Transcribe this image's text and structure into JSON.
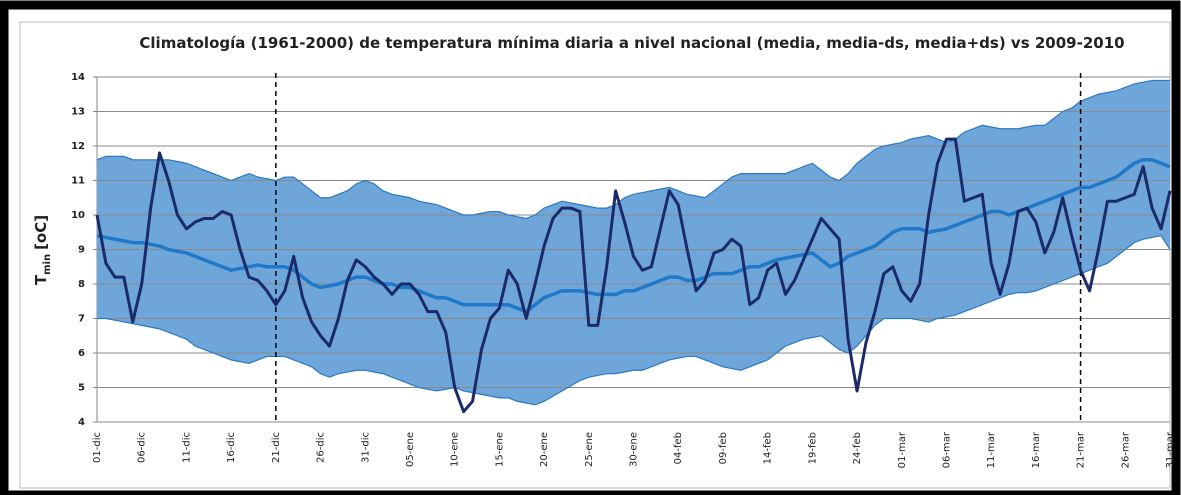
{
  "chart_data": {
    "type": "line",
    "title": "Climatología (1961-2000) de temperatura mínima diaria a nivel nacional (media, media-ds, media+ds) vs 2009-2010",
    "ylabel": {
      "main": "T",
      "sub": "min",
      "unit": "[oC]"
    },
    "categories": [
      "01-dic",
      null,
      null,
      null,
      null,
      "06-dic",
      null,
      null,
      null,
      null,
      "11-dic",
      null,
      null,
      null,
      null,
      "16-dic",
      null,
      null,
      null,
      null,
      "21-dic",
      null,
      null,
      null,
      null,
      "26-dic",
      null,
      null,
      null,
      null,
      "31-dic",
      null,
      null,
      null,
      null,
      "05-ene",
      null,
      null,
      null,
      null,
      "10-ene",
      null,
      null,
      null,
      null,
      "15-ene",
      null,
      null,
      null,
      null,
      "20-ene",
      null,
      null,
      null,
      null,
      "25-ene",
      null,
      null,
      null,
      null,
      "30-ene",
      null,
      null,
      null,
      null,
      "04-feb",
      null,
      null,
      null,
      null,
      "09-feb",
      null,
      null,
      null,
      null,
      "14-feb",
      null,
      null,
      null,
      null,
      "19-feb",
      null,
      null,
      null,
      null,
      "24-feb",
      null,
      null,
      null,
      null,
      "01-mar",
      null,
      null,
      null,
      null,
      "06-mar",
      null,
      null,
      null,
      null,
      "11-mar",
      null,
      null,
      null,
      null,
      "16-mar",
      null,
      null,
      null,
      null,
      "21-mar",
      null,
      null,
      null,
      null,
      "26-mar",
      null,
      null,
      null,
      null,
      "31-mar"
    ],
    "band": {
      "color": "#6ea6da",
      "edge_color": "#2b79c2",
      "upper": [
        11.6,
        11.7,
        11.7,
        11.7,
        11.6,
        11.6,
        11.6,
        11.6,
        11.6,
        11.55,
        11.5,
        11.4,
        11.3,
        11.2,
        11.1,
        11.0,
        11.1,
        11.2,
        11.1,
        11.05,
        11.0,
        11.1,
        11.1,
        10.9,
        10.7,
        10.5,
        10.5,
        10.6,
        10.7,
        10.9,
        11.0,
        10.9,
        10.7,
        10.6,
        10.55,
        10.5,
        10.4,
        10.35,
        10.3,
        10.2,
        10.1,
        10.0,
        10.0,
        10.05,
        10.1,
        10.1,
        10.0,
        9.95,
        9.9,
        10.0,
        10.2,
        10.3,
        10.4,
        10.35,
        10.3,
        10.25,
        10.2,
        10.2,
        10.3,
        10.5,
        10.6,
        10.65,
        10.7,
        10.75,
        10.8,
        10.7,
        10.6,
        10.55,
        10.5,
        10.7,
        10.9,
        11.1,
        11.2,
        11.2,
        11.2,
        11.2,
        11.2,
        11.2,
        11.3,
        11.4,
        11.5,
        11.3,
        11.1,
        11.0,
        11.2,
        11.5,
        11.7,
        11.9,
        12.0,
        12.05,
        12.1,
        12.2,
        12.25,
        12.3,
        12.2,
        12.1,
        12.2,
        12.4,
        12.5,
        12.6,
        12.55,
        12.5,
        12.5,
        12.5,
        12.55,
        12.6,
        12.6,
        12.8,
        13.0,
        13.1,
        13.3,
        13.4,
        13.5,
        13.55,
        13.6,
        13.7,
        13.8,
        13.85,
        13.9,
        13.9,
        13.9
      ],
      "lower": [
        7.0,
        7.0,
        6.95,
        6.9,
        6.85,
        6.8,
        6.75,
        6.7,
        6.6,
        6.5,
        6.4,
        6.2,
        6.1,
        6.0,
        5.9,
        5.8,
        5.75,
        5.7,
        5.8,
        5.9,
        5.9,
        5.9,
        5.8,
        5.7,
        5.6,
        5.4,
        5.3,
        5.4,
        5.45,
        5.5,
        5.5,
        5.45,
        5.4,
        5.3,
        5.2,
        5.1,
        5.0,
        4.95,
        4.9,
        4.95,
        5.0,
        4.9,
        4.85,
        4.8,
        4.75,
        4.7,
        4.7,
        4.6,
        4.55,
        4.5,
        4.6,
        4.75,
        4.9,
        5.05,
        5.2,
        5.3,
        5.35,
        5.4,
        5.4,
        5.45,
        5.5,
        5.5,
        5.6,
        5.7,
        5.8,
        5.85,
        5.9,
        5.9,
        5.8,
        5.7,
        5.6,
        5.55,
        5.5,
        5.6,
        5.7,
        5.8,
        6.0,
        6.2,
        6.3,
        6.4,
        6.45,
        6.5,
        6.3,
        6.1,
        6.0,
        6.2,
        6.5,
        6.8,
        7.0,
        7.0,
        7.0,
        7.0,
        6.95,
        6.9,
        7.0,
        7.05,
        7.1,
        7.2,
        7.3,
        7.4,
        7.5,
        7.6,
        7.7,
        7.75,
        7.75,
        7.8,
        7.9,
        8.0,
        8.1,
        8.2,
        8.3,
        8.4,
        8.5,
        8.6,
        8.8,
        9.0,
        9.2,
        9.3,
        9.35,
        9.4,
        9.0
      ]
    },
    "series": [
      {
        "color": "#1f78c8",
        "width": 3.5,
        "values": [
          9.4,
          9.35,
          9.3,
          9.25,
          9.2,
          9.2,
          9.15,
          9.1,
          9.0,
          8.95,
          8.9,
          8.8,
          8.7,
          8.6,
          8.5,
          8.4,
          8.45,
          8.5,
          8.55,
          8.5,
          8.5,
          8.5,
          8.4,
          8.2,
          8.0,
          7.9,
          7.95,
          8.0,
          8.1,
          8.2,
          8.2,
          8.1,
          8.0,
          8.0,
          7.9,
          7.9,
          7.8,
          7.7,
          7.6,
          7.6,
          7.5,
          7.4,
          7.4,
          7.4,
          7.4,
          7.4,
          7.4,
          7.3,
          7.2,
          7.4,
          7.6,
          7.7,
          7.8,
          7.8,
          7.8,
          7.75,
          7.7,
          7.7,
          7.7,
          7.8,
          7.8,
          7.9,
          8.0,
          8.1,
          8.2,
          8.2,
          8.1,
          8.1,
          8.2,
          8.3,
          8.3,
          8.3,
          8.4,
          8.5,
          8.5,
          8.6,
          8.7,
          8.75,
          8.8,
          8.85,
          8.9,
          8.7,
          8.5,
          8.6,
          8.8,
          8.9,
          9.0,
          9.1,
          9.3,
          9.5,
          9.6,
          9.6,
          9.6,
          9.5,
          9.55,
          9.6,
          9.7,
          9.8,
          9.9,
          10.0,
          10.1,
          10.1,
          10.0,
          10.1,
          10.2,
          10.3,
          10.4,
          10.5,
          10.6,
          10.7,
          10.8,
          10.8,
          10.9,
          11.0,
          11.1,
          11.3,
          11.5,
          11.6,
          11.6,
          11.5,
          11.4
        ]
      },
      {
        "color": "#1b2a6b",
        "width": 3,
        "values": [
          10.0,
          8.6,
          8.2,
          8.2,
          6.9,
          8.0,
          10.2,
          11.8,
          11.0,
          10.0,
          9.6,
          9.8,
          9.9,
          9.9,
          10.1,
          10.0,
          9.0,
          8.2,
          8.1,
          7.8,
          7.4,
          7.8,
          8.8,
          7.6,
          6.9,
          6.5,
          6.2,
          7.0,
          8.1,
          8.7,
          8.5,
          8.2,
          8.0,
          7.7,
          8.0,
          8.0,
          7.7,
          7.2,
          7.2,
          6.6,
          5.0,
          4.3,
          4.6,
          6.1,
          7.0,
          7.3,
          8.4,
          8.0,
          7.0,
          8.0,
          9.1,
          9.9,
          10.2,
          10.2,
          10.1,
          6.8,
          6.8,
          8.5,
          10.7,
          9.8,
          8.8,
          8.4,
          8.5,
          9.6,
          10.7,
          10.3,
          9.0,
          7.8,
          8.1,
          8.9,
          9.0,
          9.3,
          9.1,
          7.4,
          7.6,
          8.4,
          8.6,
          7.7,
          8.1,
          8.7,
          9.3,
          9.9,
          9.6,
          9.3,
          6.4,
          4.9,
          6.3,
          7.2,
          8.3,
          8.5,
          7.8,
          7.5,
          8.0,
          10.0,
          11.5,
          12.2,
          12.2,
          10.4,
          10.5,
          10.6,
          8.6,
          7.7,
          8.6,
          10.1,
          10.2,
          9.8,
          8.9,
          9.5,
          10.5,
          9.4,
          8.4,
          7.8,
          9.0,
          10.4,
          10.4,
          10.5,
          10.6,
          11.4,
          10.2,
          9.6,
          10.7
        ]
      }
    ],
    "vlines": [
      "21-dic",
      "21-mar"
    ],
    "ylim": [
      4,
      14
    ],
    "yticks": [
      4,
      5,
      6,
      7,
      8,
      9,
      10,
      11,
      12,
      13,
      14
    ],
    "grid": true
  }
}
